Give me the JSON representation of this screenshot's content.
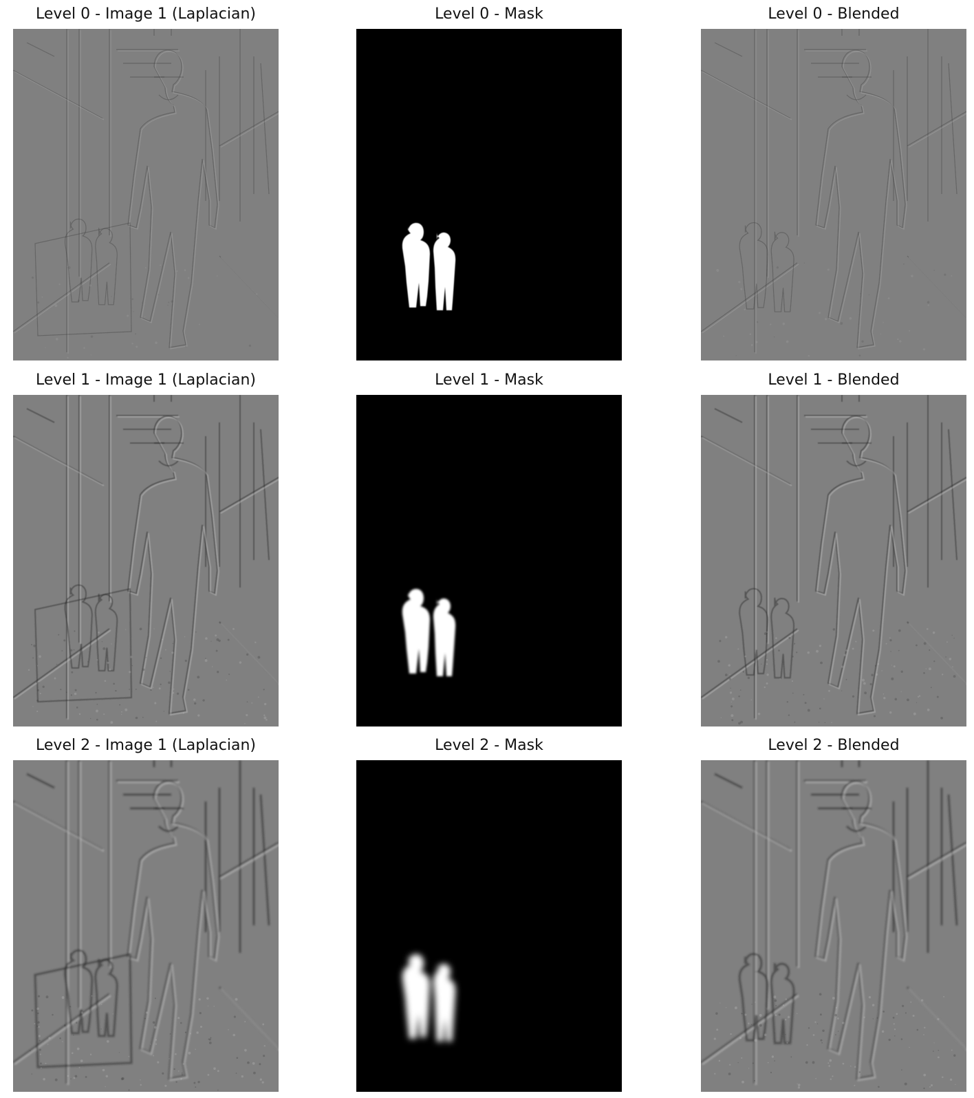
{
  "figure": {
    "rows": [
      {
        "level": 0,
        "laplacian_title": "Level 0 - Image 1 (Laplacian)",
        "mask_title": "Level 0 - Mask",
        "blended_title": "Level 0 - Blended",
        "edge_strength": "faint",
        "mask_blur": "sharp"
      },
      {
        "level": 1,
        "laplacian_title": "Level 1 - Image 1 (Laplacian)",
        "mask_title": "Level 1 - Mask",
        "blended_title": "Level 1 - Blended",
        "edge_strength": "medium",
        "mask_blur": "soft"
      },
      {
        "level": 2,
        "laplacian_title": "Level 2 - Image 1 (Laplacian)",
        "mask_title": "Level 2 - Mask",
        "blended_title": "Level 2 - Blended",
        "edge_strength": "strong",
        "mask_blur": "blurred"
      }
    ],
    "colors": {
      "laplacian_background": "#808080",
      "mask_background": "#000000",
      "mask_foreground": "#ffffff"
    }
  }
}
